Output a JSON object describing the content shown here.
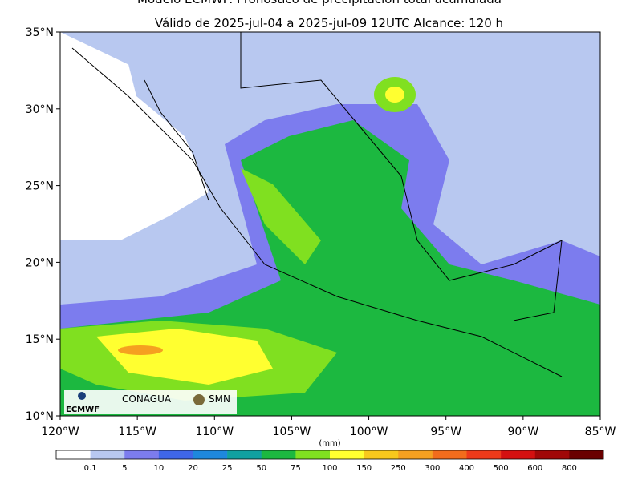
{
  "header": {
    "title": "Modelo ECMWF: Pronóstico de precipitación total acumulada",
    "subtitle": "Válido de 2025-jul-04 a 2025-jul-09 12UTC   Alcance: 120 h"
  },
  "map": {
    "lat_labels": [
      "35°N",
      "30°N",
      "25°N",
      "20°N",
      "15°N",
      "10°N"
    ],
    "lon_labels": [
      "120°W",
      "115°W",
      "110°W",
      "105°W",
      "100°W",
      "95°W",
      "90°W",
      "85°W"
    ]
  },
  "colorbar": {
    "unit": "(mm)",
    "labels": [
      "0.1",
      "5",
      "10",
      "20",
      "25",
      "50",
      "75",
      "100",
      "150",
      "250",
      "300",
      "400",
      "500",
      "600",
      "800"
    ],
    "colors": [
      "#ffffff",
      "#b8c8f0",
      "#7c7cee",
      "#3f66e8",
      "#1e88dd",
      "#10a0a0",
      "#1cb840",
      "#80e020",
      "#ffff30",
      "#f8c81c",
      "#f5a020",
      "#f26c1c",
      "#ee3a1a",
      "#d41010",
      "#a00808",
      "#6a0000"
    ]
  },
  "logos": {
    "ecmwf": "ECMWF",
    "conagua": "CONAGUA",
    "smn": "SMN"
  }
}
